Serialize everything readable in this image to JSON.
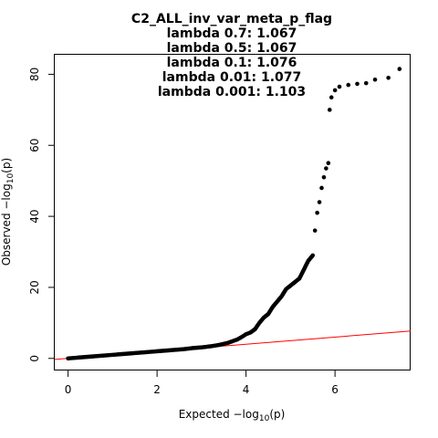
{
  "chart_data": {
    "type": "scatter",
    "title_lines": [
      "C2_ALL_inv_var_meta_p_flag",
      "lambda 0.7: 1.067",
      "lambda 0.5: 1.067",
      "lambda 0.1: 1.076",
      "lambda 0.01: 1.077",
      "lambda 0.001: 1.103"
    ],
    "xlabel": {
      "prefix": "Expected  −log",
      "sub": "10",
      "suffix": "(p)"
    },
    "ylabel": {
      "prefix": "Observed  −log",
      "sub": "10",
      "suffix": "(p)"
    },
    "xlim": [
      -0.3,
      7.7
    ],
    "ylim": [
      -3.4,
      85.5
    ],
    "xticks": [
      0,
      2,
      4,
      6
    ],
    "yticks": [
      0,
      20,
      40,
      60,
      80
    ],
    "grid": false,
    "reference_line": {
      "color": "#ff0000",
      "x": [
        -0.3,
        7.7
      ],
      "y": [
        -0.3,
        7.7
      ]
    },
    "point_color": "#000000",
    "points": [
      [
        0.0,
        0.0
      ],
      [
        0.2,
        0.2
      ],
      [
        0.4,
        0.4
      ],
      [
        0.6,
        0.6
      ],
      [
        0.8,
        0.8
      ],
      [
        1.0,
        1.0
      ],
      [
        1.2,
        1.2
      ],
      [
        1.4,
        1.4
      ],
      [
        1.6,
        1.6
      ],
      [
        1.8,
        1.8
      ],
      [
        2.0,
        2.0
      ],
      [
        2.2,
        2.2
      ],
      [
        2.4,
        2.4
      ],
      [
        2.6,
        2.6
      ],
      [
        2.8,
        2.9
      ],
      [
        3.0,
        3.1
      ],
      [
        3.2,
        3.4
      ],
      [
        3.4,
        3.8
      ],
      [
        3.6,
        4.4
      ],
      [
        3.8,
        5.3
      ],
      [
        3.9,
        6.0
      ],
      [
        4.0,
        6.8
      ],
      [
        4.1,
        7.3
      ],
      [
        4.2,
        8.2
      ],
      [
        4.3,
        10.0
      ],
      [
        4.4,
        11.5
      ],
      [
        4.5,
        12.5
      ],
      [
        4.6,
        14.5
      ],
      [
        4.7,
        16.0
      ],
      [
        4.8,
        17.5
      ],
      [
        4.9,
        19.5
      ],
      [
        5.0,
        20.5
      ],
      [
        5.1,
        21.5
      ],
      [
        5.2,
        22.5
      ],
      [
        5.3,
        25.0
      ],
      [
        5.4,
        27.5
      ],
      [
        5.5,
        29.0
      ],
      [
        5.55,
        36.0
      ],
      [
        5.6,
        41.0
      ],
      [
        5.65,
        44.0
      ],
      [
        5.7,
        48.0
      ],
      [
        5.75,
        51.0
      ],
      [
        5.8,
        53.5
      ],
      [
        5.85,
        55.0
      ],
      [
        5.88,
        70.0
      ],
      [
        5.92,
        73.5
      ],
      [
        6.0,
        75.5
      ],
      [
        6.1,
        76.5
      ],
      [
        6.3,
        77.0
      ],
      [
        6.5,
        77.3
      ],
      [
        6.7,
        77.5
      ],
      [
        6.9,
        78.5
      ],
      [
        7.2,
        79.0
      ],
      [
        7.45,
        81.5
      ]
    ]
  }
}
